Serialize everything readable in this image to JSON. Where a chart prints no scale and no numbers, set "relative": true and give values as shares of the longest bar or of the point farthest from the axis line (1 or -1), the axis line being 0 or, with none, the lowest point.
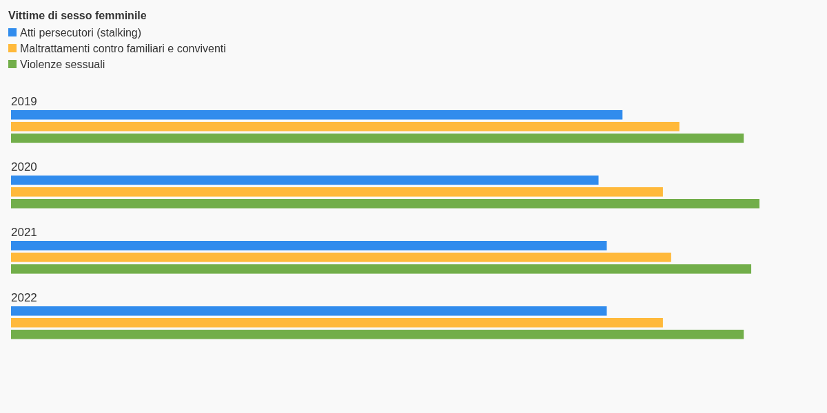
{
  "chart_data": {
    "type": "bar",
    "orientation": "horizontal",
    "relative": true,
    "legend": "top left",
    "legend_title": "Vittime di sesso femminile",
    "categories": [
      "2019",
      "2020",
      "2021",
      "2022"
    ],
    "series": [
      {
        "name": "Atti persecutori (stalking)",
        "color": "#318ced",
        "values": [
          0.817,
          0.785,
          0.796,
          0.796
        ]
      },
      {
        "name": "Maltrattamenti contro familiari e conviventi",
        "color": "#ffb93b",
        "values": [
          0.893,
          0.871,
          0.882,
          0.871
        ]
      },
      {
        "name": "Violenze sessuali",
        "color": "#72ae4a",
        "values": [
          0.979,
          1,
          0.989,
          0.979
        ]
      }
    ]
  }
}
